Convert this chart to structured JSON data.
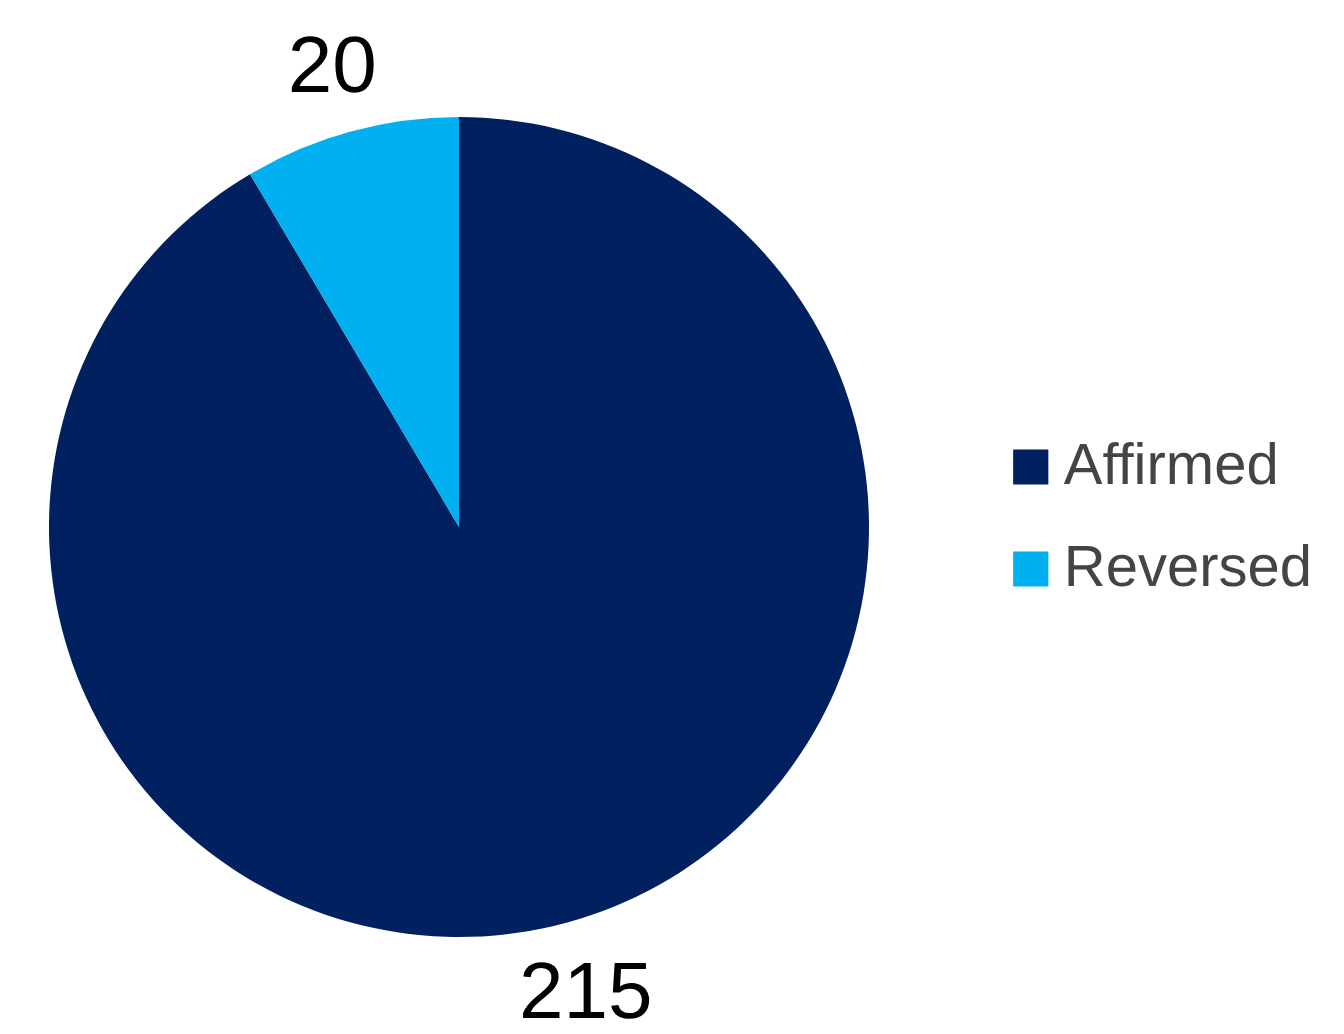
{
  "chart_data": {
    "type": "pie",
    "categories": [
      "Affirmed",
      "Reversed"
    ],
    "values": [
      215,
      20
    ],
    "colors": [
      "#002060",
      "#00b0f0"
    ],
    "data_labels": true,
    "legend": "right"
  }
}
